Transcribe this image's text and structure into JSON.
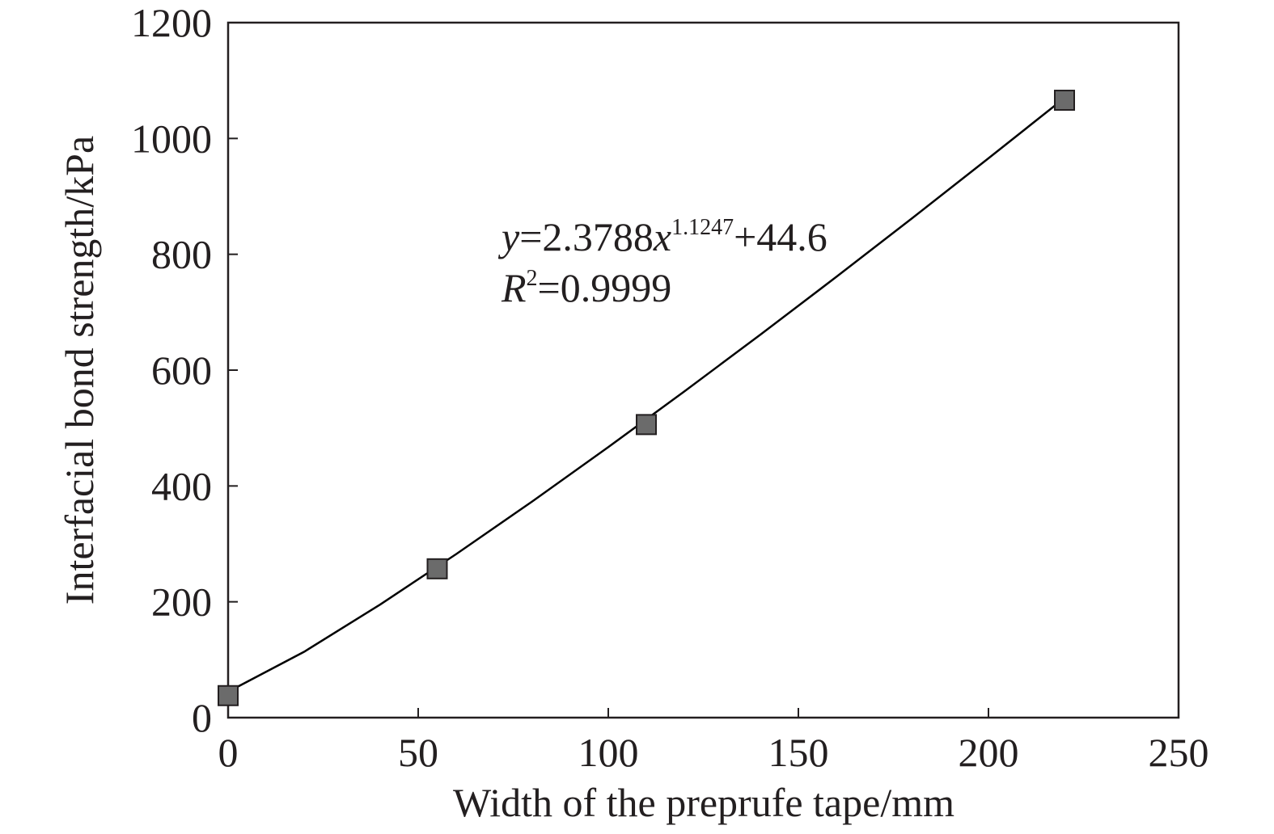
{
  "chart_data": {
    "type": "scatter",
    "xlabel": "Width of the preprufe tape/mm",
    "ylabel": "Interfacial bond strength/kPa",
    "xlim": [
      0,
      250
    ],
    "xticks": [
      0,
      50,
      100,
      150,
      200,
      250
    ],
    "ylim": [
      0,
      1200
    ],
    "yticks": [
      0,
      200,
      400,
      600,
      800,
      1000,
      1200
    ],
    "annotations": [
      [
        "y",
        "=2.3788",
        "x",
        "1.1247",
        "+44.6"
      ],
      [
        "R",
        "2",
        "=0.9999"
      ]
    ],
    "series": [
      {
        "color": "#000000",
        "marker": "none",
        "line": true,
        "x": [
          0,
          20,
          40,
          60,
          80,
          100,
          120,
          140,
          160,
          180,
          200,
          220
        ],
        "values": [
          44.6,
          113.7,
          195.3,
          282.4,
          373.3,
          467.1,
          563.2,
          661.2,
          761.1,
          862.7,
          965.7,
          1069.9
        ]
      },
      {
        "color": "#6b6b6b",
        "marker": "square",
        "line": false,
        "x": [
          0,
          55,
          110,
          220
        ],
        "values": [
          38,
          257,
          506,
          1066
        ]
      }
    ]
  }
}
